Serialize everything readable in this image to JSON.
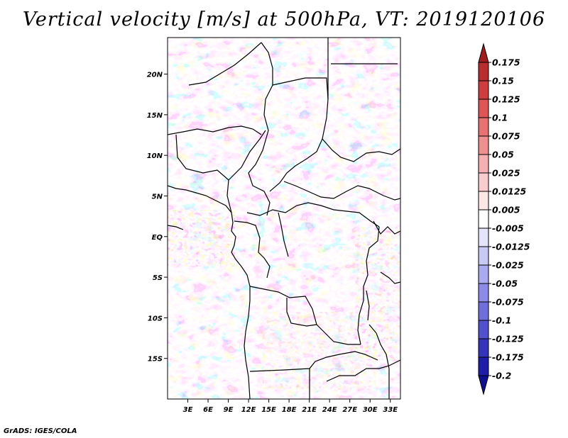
{
  "chart_data": {
    "type": "heatmap",
    "title": "Vertical velocity [m/s] at 500hPa, VT: 2019120106",
    "variable": "Vertical velocity",
    "units": "m/s",
    "level": "500hPa",
    "valid_time": "2019120106",
    "x_ticks": [
      "3E",
      "6E",
      "9E",
      "12E",
      "15E",
      "18E",
      "21E",
      "24E",
      "27E",
      "30E",
      "33E"
    ],
    "x_tick_values": [
      3,
      6,
      9,
      12,
      15,
      18,
      21,
      24,
      27,
      30,
      33
    ],
    "y_ticks": [
      "20N",
      "15N",
      "10N",
      "5N",
      "EQ",
      "5S",
      "10S",
      "15S"
    ],
    "y_tick_values": [
      20,
      15,
      10,
      5,
      0,
      -5,
      -10,
      -15
    ],
    "xlim": [
      0,
      34.5
    ],
    "ylim": [
      -20,
      24.5
    ],
    "colorbar": {
      "labels": [
        "0.175",
        "0.15",
        "0.125",
        "0.1",
        "0.075",
        "0.05",
        "0.025",
        "0.0125",
        "0.005",
        "-0.005",
        "-0.0125",
        "-0.025",
        "-0.05",
        "-0.075",
        "-0.1",
        "-0.125",
        "-0.175",
        "-0.2"
      ],
      "colors": [
        "#a01d1d",
        "#b82d2d",
        "#cf3e3e",
        "#de5555",
        "#e87272",
        "#ef9090",
        "#f5b1b1",
        "#f9cdcd",
        "#fce7e7",
        "#ffffff",
        "#e4e4fb",
        "#c9c9f6",
        "#aaaaf0",
        "#8c8ce8",
        "#6f6fdc",
        "#5151ce",
        "#3434bb",
        "#1d1da8",
        "#10108f"
      ]
    }
  },
  "footer": {
    "credit": "GrADS: IGES/COLA"
  }
}
